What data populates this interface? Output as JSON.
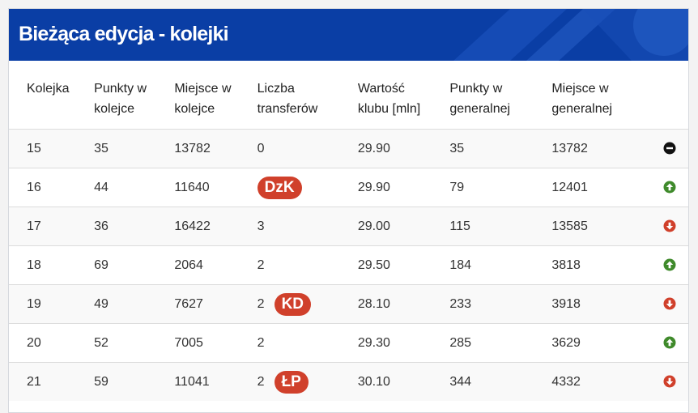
{
  "panel": {
    "title": "Bieżąca edycja - kolejki"
  },
  "table": {
    "headers": [
      [
        "Kolejka"
      ],
      [
        "Punkty w",
        "kolejce"
      ],
      [
        "Miejsce w",
        "kolejce"
      ],
      [
        "Liczba",
        "transferów"
      ],
      [
        "Wartość",
        "klubu [mln]"
      ],
      [
        "Punkty w",
        "generalnej"
      ],
      [
        "Miejsce w",
        "generalnej"
      ]
    ],
    "rows": [
      {
        "kolejka": "15",
        "punkty": "35",
        "miejsce": "13782",
        "transfery": "0",
        "badge": "",
        "wartosc": "29.90",
        "punkty_gen": "35",
        "miejsce_gen": "13782",
        "trend": "neutral"
      },
      {
        "kolejka": "16",
        "punkty": "44",
        "miejsce": "11640",
        "transfery": "",
        "badge": "DzK",
        "wartosc": "29.90",
        "punkty_gen": "79",
        "miejsce_gen": "12401",
        "trend": "up"
      },
      {
        "kolejka": "17",
        "punkty": "36",
        "miejsce": "16422",
        "transfery": "3",
        "badge": "",
        "wartosc": "29.00",
        "punkty_gen": "115",
        "miejsce_gen": "13585",
        "trend": "down"
      },
      {
        "kolejka": "18",
        "punkty": "69",
        "miejsce": "2064",
        "transfery": "2",
        "badge": "",
        "wartosc": "29.50",
        "punkty_gen": "184",
        "miejsce_gen": "3818",
        "trend": "up"
      },
      {
        "kolejka": "19",
        "punkty": "49",
        "miejsce": "7627",
        "transfery": "2",
        "badge": "KD",
        "wartosc": "28.10",
        "punkty_gen": "233",
        "miejsce_gen": "3918",
        "trend": "down"
      },
      {
        "kolejka": "20",
        "punkty": "52",
        "miejsce": "7005",
        "transfery": "2",
        "badge": "",
        "wartosc": "29.30",
        "punkty_gen": "285",
        "miejsce_gen": "3629",
        "trend": "up"
      },
      {
        "kolejka": "21",
        "punkty": "59",
        "miejsce": "11041",
        "transfery": "2",
        "badge": "ŁP",
        "wartosc": "30.10",
        "punkty_gen": "344",
        "miejsce_gen": "4332",
        "trend": "down"
      }
    ]
  },
  "colors": {
    "header_bg": "#0a3ea5",
    "badge_bg": "#d0402b",
    "trend_up": "#3f8a2b",
    "trend_down": "#d0402b",
    "trend_neutral": "#111111"
  },
  "icons": {
    "up": "arrow-up-circle-icon",
    "down": "arrow-down-circle-icon",
    "neutral": "minus-circle-icon"
  }
}
